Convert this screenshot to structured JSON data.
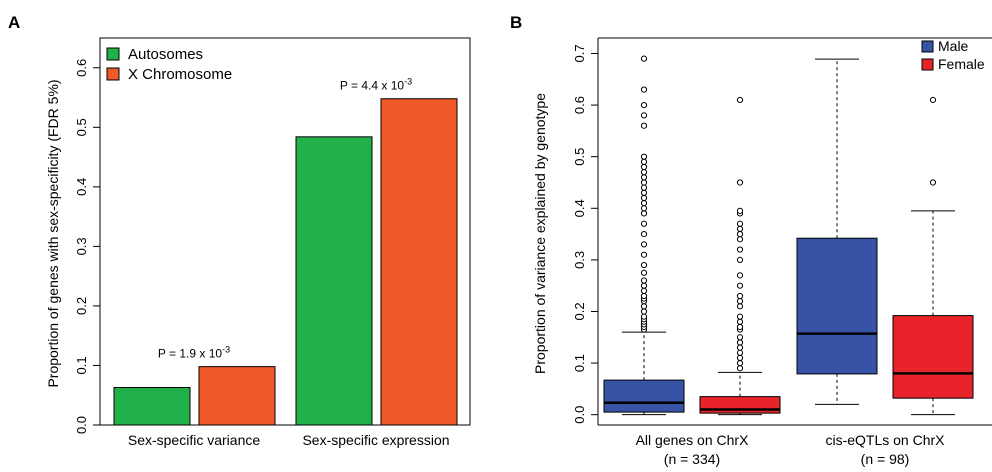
{
  "colors": {
    "autosomes": "#22b04b",
    "x_chromosome": "#f05a28",
    "male": "#3653a5",
    "female": "#e8242a"
  },
  "panel_a": {
    "label": "A",
    "ylabel": "Proportion of genes with sex-specificity (FDR 5%)"
  },
  "panel_b": {
    "label": "B",
    "ylabel": "Proportion of variance explained by genotype"
  },
  "chart_data": [
    {
      "type": "bar",
      "panel": "A",
      "categories": [
        "Sex-specific variance",
        "Sex-specific expression"
      ],
      "series": [
        {
          "name": "Autosomes",
          "values": [
            0.063,
            0.484
          ]
        },
        {
          "name": "X Chromosome",
          "values": [
            0.098,
            0.548
          ]
        }
      ],
      "annotations": [
        {
          "category": "Sex-specific variance",
          "base": "P = 1.9 x 10",
          "exp": "-3"
        },
        {
          "category": "Sex-specific expression",
          "base": "P = 4.4 x 10",
          "exp": "-3"
        }
      ],
      "ylabel": "Proportion of genes with sex-specificity (FDR 5%)",
      "ylim": [
        0,
        0.65
      ],
      "yticks": [
        "0.0",
        "0.1",
        "0.2",
        "0.3",
        "0.4",
        "0.5",
        "0.6"
      ],
      "legend_position": "top-left"
    },
    {
      "type": "box",
      "panel": "B",
      "groups": [
        {
          "label": "All genes on ChrX",
          "sublabel": "(n = 334)"
        },
        {
          "label": "cis-eQTLs on ChrX",
          "sublabel": "(n = 98)"
        }
      ],
      "series": [
        {
          "name": "Male",
          "boxes": [
            {
              "min": 0.0,
              "q1": 0.005,
              "median": 0.023,
              "q3": 0.067,
              "max": 0.16,
              "outliers": [
                0.165,
                0.17,
                0.175,
                0.18,
                0.185,
                0.19,
                0.2,
                0.21,
                0.22,
                0.225,
                0.23,
                0.24,
                0.25,
                0.26,
                0.275,
                0.29,
                0.31,
                0.33,
                0.35,
                0.37,
                0.39,
                0.4,
                0.41,
                0.42,
                0.43,
                0.44,
                0.45,
                0.46,
                0.47,
                0.48,
                0.49,
                0.5,
                0.56,
                0.58,
                0.6,
                0.63,
                0.69
              ]
            },
            {
              "min": 0.02,
              "q1": 0.079,
              "median": 0.157,
              "q3": 0.342,
              "max": 0.689,
              "outliers": []
            }
          ]
        },
        {
          "name": "Female",
          "boxes": [
            {
              "min": 0.0,
              "q1": 0.003,
              "median": 0.01,
              "q3": 0.035,
              "max": 0.082,
              "outliers": [
                0.09,
                0.1,
                0.11,
                0.12,
                0.13,
                0.14,
                0.15,
                0.165,
                0.17,
                0.18,
                0.19,
                0.21,
                0.22,
                0.23,
                0.25,
                0.27,
                0.3,
                0.32,
                0.34,
                0.35,
                0.36,
                0.37,
                0.39,
                0.395,
                0.45,
                0.61
              ]
            },
            {
              "min": 0.0,
              "q1": 0.032,
              "median": 0.08,
              "q3": 0.192,
              "max": 0.395,
              "outliers": [
                0.45,
                0.61
              ]
            }
          ]
        }
      ],
      "ylabel": "Proportion of variance explained by genotype",
      "ylim": [
        -0.02,
        0.73
      ],
      "yticks": [
        "0.0",
        "0.1",
        "0.2",
        "0.3",
        "0.4",
        "0.5",
        "0.6",
        "0.7"
      ],
      "legend_position": "top-right"
    }
  ]
}
